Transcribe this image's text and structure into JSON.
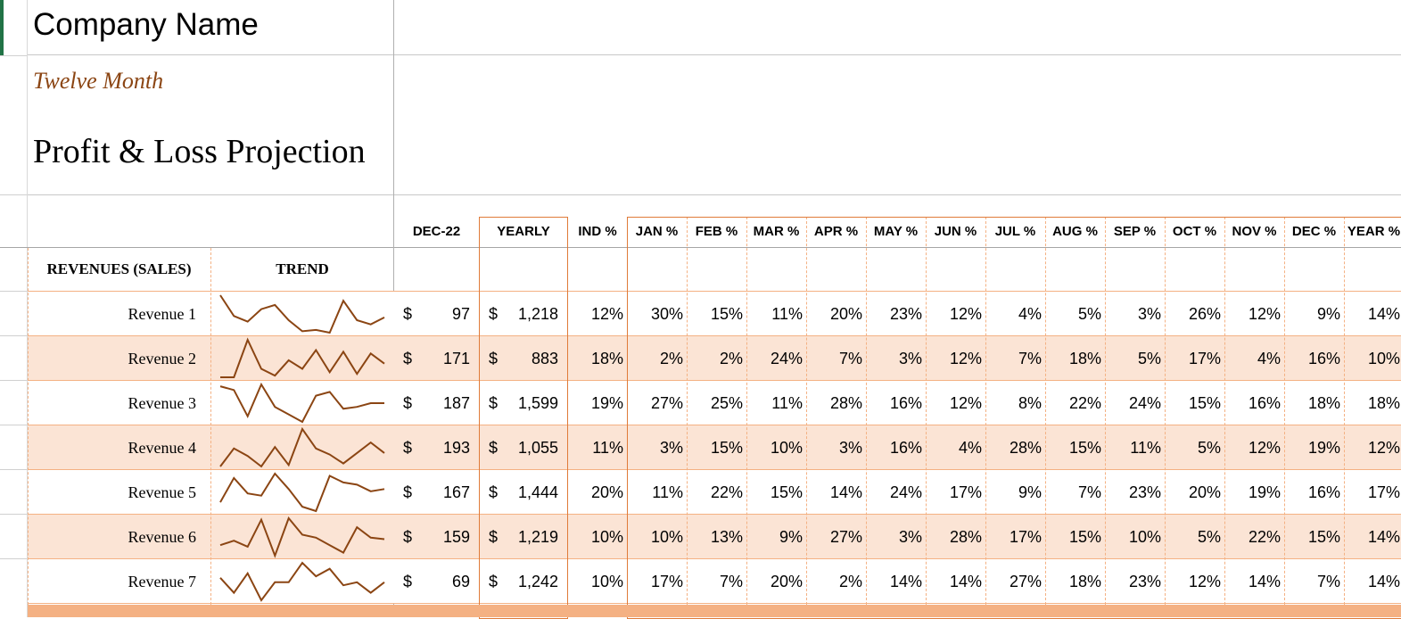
{
  "header": {
    "company_name": "Company Name",
    "subtitle": "Twelve Month",
    "title": "Profit & Loss Projection"
  },
  "columns": {
    "dec22": "DEC-22",
    "yearly": "YEARLY",
    "ind_pct": "IND %",
    "months": [
      "JAN %",
      "FEB %",
      "MAR %",
      "APR %",
      "MAY %",
      "JUN %",
      "JUL %",
      "AUG %",
      "SEP %",
      "OCT %",
      "NOV %",
      "DEC %",
      "YEAR %"
    ]
  },
  "section": {
    "label": "REVENUES (SALES)",
    "trend": "TREND"
  },
  "currency_symbol": "$",
  "trend_color": "#8b4513",
  "rows": [
    {
      "label": "Revenue 1",
      "dec22": "97",
      "yearly": "1,218",
      "ind": "12%",
      "months": [
        "30%",
        "15%",
        "11%",
        "20%",
        "23%",
        "12%",
        "4%",
        "5%",
        "3%",
        "26%",
        "12%",
        "9%",
        "14%"
      ],
      "trend": [
        30,
        15,
        11,
        20,
        23,
        12,
        4,
        5,
        3,
        26,
        12,
        9,
        14
      ]
    },
    {
      "label": "Revenue 2",
      "dec22": "171",
      "yearly": "883",
      "ind": "18%",
      "months": [
        "2%",
        "2%",
        "24%",
        "7%",
        "3%",
        "12%",
        "7%",
        "18%",
        "5%",
        "17%",
        "4%",
        "16%",
        "10%"
      ],
      "trend": [
        2,
        2,
        24,
        7,
        3,
        12,
        7,
        18,
        5,
        17,
        4,
        16,
        10
      ]
    },
    {
      "label": "Revenue 3",
      "dec22": "187",
      "yearly": "1,599",
      "ind": "19%",
      "months": [
        "27%",
        "25%",
        "11%",
        "28%",
        "16%",
        "12%",
        "8%",
        "22%",
        "24%",
        "15%",
        "16%",
        "18%",
        "18%"
      ],
      "trend": [
        27,
        25,
        11,
        28,
        16,
        12,
        8,
        22,
        24,
        15,
        16,
        18,
        18
      ]
    },
    {
      "label": "Revenue 4",
      "dec22": "193",
      "yearly": "1,055",
      "ind": "11%",
      "months": [
        "3%",
        "15%",
        "10%",
        "3%",
        "16%",
        "4%",
        "28%",
        "15%",
        "11%",
        "5%",
        "12%",
        "19%",
        "12%"
      ],
      "trend": [
        3,
        15,
        10,
        3,
        16,
        4,
        28,
        15,
        11,
        5,
        12,
        19,
        12
      ]
    },
    {
      "label": "Revenue 5",
      "dec22": "167",
      "yearly": "1,444",
      "ind": "20%",
      "months": [
        "11%",
        "22%",
        "15%",
        "14%",
        "24%",
        "17%",
        "9%",
        "7%",
        "23%",
        "20%",
        "19%",
        "16%",
        "17%"
      ],
      "trend": [
        11,
        22,
        15,
        14,
        24,
        17,
        9,
        7,
        23,
        20,
        19,
        16,
        17
      ]
    },
    {
      "label": "Revenue 6",
      "dec22": "159",
      "yearly": "1,219",
      "ind": "10%",
      "months": [
        "10%",
        "13%",
        "9%",
        "27%",
        "3%",
        "28%",
        "17%",
        "15%",
        "10%",
        "5%",
        "22%",
        "15%",
        "14%"
      ],
      "trend": [
        10,
        13,
        9,
        27,
        3,
        28,
        17,
        15,
        10,
        5,
        22,
        15,
        14
      ]
    },
    {
      "label": "Revenue 7",
      "dec22": "69",
      "yearly": "1,242",
      "ind": "10%",
      "months": [
        "17%",
        "7%",
        "20%",
        "2%",
        "14%",
        "14%",
        "27%",
        "18%",
        "23%",
        "12%",
        "14%",
        "7%",
        "14%"
      ],
      "trend": [
        17,
        7,
        20,
        2,
        14,
        14,
        27,
        18,
        23,
        12,
        14,
        7,
        14
      ]
    }
  ]
}
